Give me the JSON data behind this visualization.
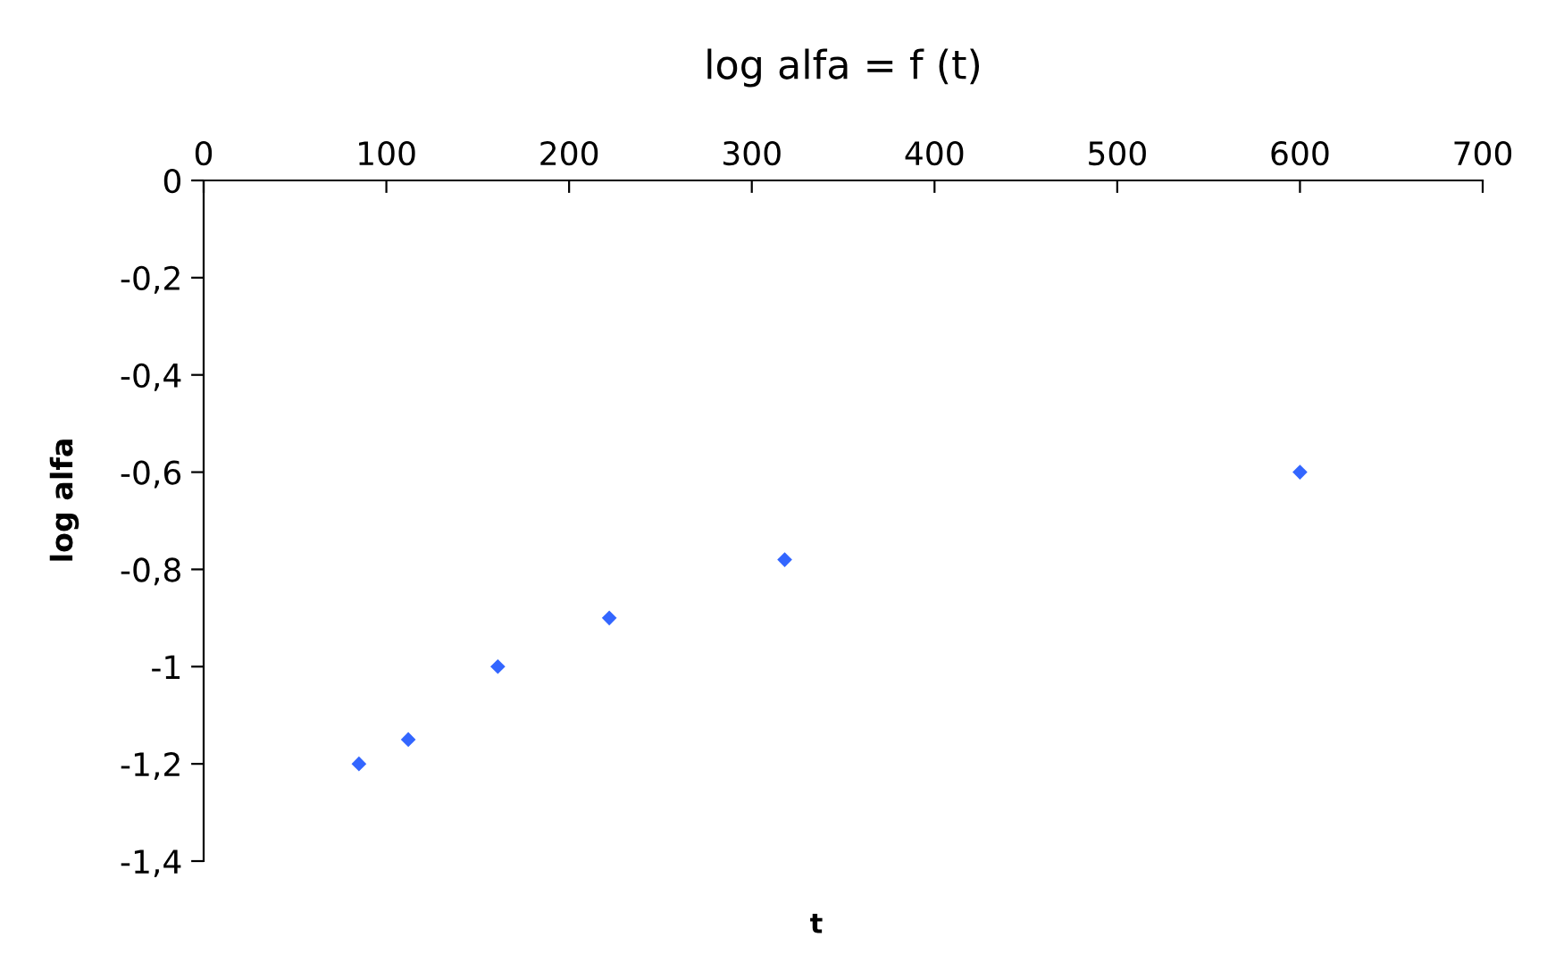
{
  "chart_data": {
    "type": "scatter",
    "title": "log alfa = f (t)",
    "xlabel": "t",
    "ylabel": "log alfa",
    "x": [
      85,
      112,
      161,
      222,
      318,
      600
    ],
    "values": [
      -1.2,
      -1.15,
      -1.0,
      -0.9,
      -0.78,
      -0.6
    ],
    "color": "#3366ff",
    "marker": "diamond",
    "grid": false,
    "legend": false,
    "xlim": [
      0,
      700
    ],
    "xticks": [
      0,
      100,
      200,
      300,
      400,
      500,
      600,
      700
    ],
    "ylim": [
      -1.4,
      0
    ],
    "yticks": [
      {
        "value": -1.4,
        "label": "-1,4"
      },
      {
        "value": -1.2,
        "label": "-1,2"
      },
      {
        "value": -1,
        "label": "-1"
      },
      {
        "value": -0.8,
        "label": "-0,8"
      },
      {
        "value": -0.6,
        "label": "-0,6"
      },
      {
        "value": -0.4,
        "label": "-0,4"
      },
      {
        "value": -0.2,
        "label": "-0,2"
      },
      0
    ]
  }
}
